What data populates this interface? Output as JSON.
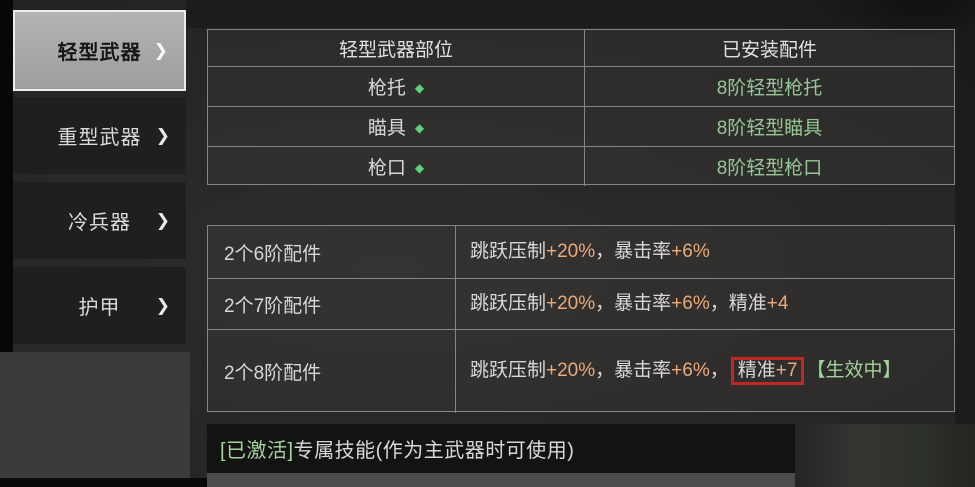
{
  "sidebar": {
    "chevron_icon": "❯",
    "items": [
      {
        "id": "light-weapons",
        "label": "轻型武器",
        "selected": true
      },
      {
        "id": "heavy-weapons",
        "label": "重型武器",
        "selected": false
      },
      {
        "id": "melee-weapons",
        "label": "冷兵器",
        "selected": false
      },
      {
        "id": "armor",
        "label": "护甲",
        "selected": false
      }
    ]
  },
  "parts_table": {
    "headers": [
      "轻型武器部位",
      "已安装配件"
    ],
    "diamond_icon": "◆",
    "rows": [
      {
        "part": "枪托",
        "attachment": "8阶轻型枪托"
      },
      {
        "part": "瞄具",
        "attachment": "8阶轻型瞄具"
      },
      {
        "part": "枪口",
        "attachment": "8阶轻型枪口"
      }
    ]
  },
  "bonus_table": {
    "rows": [
      {
        "label": "2个6阶配件",
        "effects": [
          {
            "t": "跳跃压制",
            "c": "w"
          },
          {
            "t": "+20%",
            "c": "o"
          },
          {
            "t": "，",
            "c": "w"
          },
          {
            "t": "暴击率",
            "c": "w"
          },
          {
            "t": "+6%",
            "c": "o"
          }
        ]
      },
      {
        "label": "2个7阶配件",
        "effects": [
          {
            "t": "跳跃压制",
            "c": "w"
          },
          {
            "t": "+20%",
            "c": "o"
          },
          {
            "t": "，",
            "c": "w"
          },
          {
            "t": "暴击率",
            "c": "w"
          },
          {
            "t": "+6%",
            "c": "o"
          },
          {
            "t": "，",
            "c": "w"
          },
          {
            "t": "精准",
            "c": "w"
          },
          {
            "t": "+4",
            "c": "o"
          }
        ]
      },
      {
        "label": "2个8阶配件",
        "effects": [
          {
            "t": "跳跃压制",
            "c": "w"
          },
          {
            "t": "+20%",
            "c": "o"
          },
          {
            "t": "，",
            "c": "w"
          },
          {
            "t": "暴击率",
            "c": "w"
          },
          {
            "t": "+6%",
            "c": "o"
          },
          {
            "t": "，",
            "c": "w"
          },
          {
            "c": "redbox",
            "parts": [
              {
                "t": "精准",
                "c": "w"
              },
              {
                "t": "+7",
                "c": "o"
              }
            ]
          },
          {
            "t": "【生效中】",
            "c": "g"
          }
        ]
      }
    ]
  },
  "skill_bar": {
    "activated_badge": "[已激活]",
    "label": "专属技能(作为主武器时可使用)"
  },
  "colors": {
    "accent_green": "#95c795",
    "diamond_green": "#5bd47e",
    "value_orange": "#ecaa78",
    "highlight_red": "#c32623",
    "selected_tab_bg": "#a9a9a7",
    "table_line": "#87868a"
  }
}
